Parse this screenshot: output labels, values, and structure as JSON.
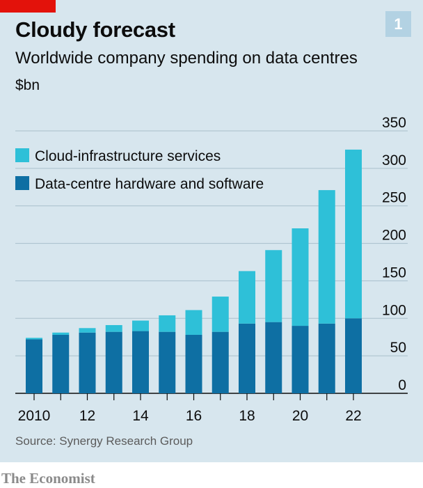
{
  "header": {
    "title": "Cloudy forecast",
    "subtitle": "Worldwide company spending on data centres",
    "unit": "$bn",
    "chart_number": "1"
  },
  "footer": {
    "source": "Source: Synergy Research Group",
    "brand": "The Economist"
  },
  "colors": {
    "cloud": "#2ec0d8",
    "hardware": "#0e6fa3",
    "background": "#d7e6ee",
    "accent_red": "#e3120b"
  },
  "chart_data": {
    "type": "bar",
    "stacked": true,
    "categories": [
      "2010",
      "2011",
      "2012",
      "2013",
      "2014",
      "2015",
      "2016",
      "2017",
      "2018",
      "2019",
      "2020",
      "2021",
      "2022"
    ],
    "x_tick_labels": [
      "2010",
      "",
      "12",
      "",
      "14",
      "",
      "16",
      "",
      "18",
      "",
      "20",
      "",
      "22"
    ],
    "series": [
      {
        "name": "Data-centre hardware and software",
        "values": [
          72,
          78,
          81,
          82,
          83,
          82,
          78,
          82,
          93,
          95,
          90,
          93,
          100
        ]
      },
      {
        "name": "Cloud-infrastructure services",
        "values": [
          2,
          3,
          6,
          9,
          14,
          22,
          33,
          47,
          70,
          96,
          130,
          178,
          225
        ]
      }
    ],
    "ylim": [
      0,
      350
    ],
    "yticks": [
      0,
      50,
      100,
      150,
      200,
      250,
      300,
      350
    ],
    "grid": true,
    "legend_position": "top-left"
  }
}
